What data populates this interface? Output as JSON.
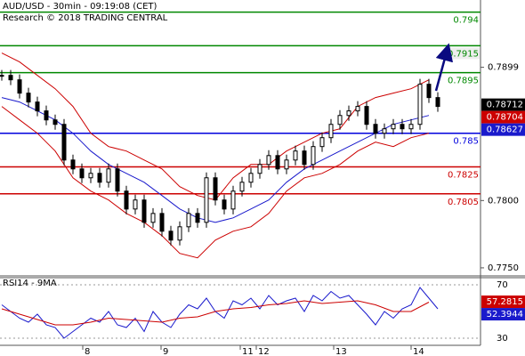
{
  "chart_data": [
    {
      "type": "candlestick",
      "title": "AUD/USD - 30min - 09:19:08 (CET)",
      "subtitle": "Research © 2018 TRADING CENTRAL",
      "x": [
        0,
        1,
        2,
        3,
        4,
        5,
        6,
        7,
        8,
        9,
        10,
        11,
        12,
        13,
        14,
        15,
        16,
        17,
        18,
        19,
        20,
        21,
        22,
        23,
        24,
        25,
        26,
        27,
        28,
        29,
        30,
        31,
        32,
        33,
        34,
        35,
        36,
        37,
        38,
        39,
        40,
        41,
        42,
        43,
        44,
        45,
        46,
        47,
        48,
        49
      ],
      "values": [
        0.7893,
        0.78897,
        0.78798,
        0.78732,
        0.78666,
        0.78599,
        0.78566,
        0.78301,
        0.78235,
        0.78169,
        0.78202,
        0.78136,
        0.78235,
        0.7807,
        0.77937,
        0.78004,
        0.77838,
        0.77904,
        0.77772,
        0.77706,
        0.77805,
        0.77904,
        0.77838,
        0.78169,
        0.78004,
        0.77937,
        0.7807,
        0.78136,
        0.78202,
        0.78268,
        0.78334,
        0.78235,
        0.78301,
        0.78368,
        0.78268,
        0.78401,
        0.78467,
        0.78566,
        0.78632,
        0.78666,
        0.78699,
        0.78566,
        0.785,
        0.78533,
        0.78566,
        0.78533,
        0.78566,
        0.78864,
        0.78765,
        0.78699
      ],
      "color": "#000000",
      "overlays": [
        {
          "color": "#1a1acc",
          "x": [
            0,
            2,
            4,
            6,
            8,
            10,
            12,
            14,
            16,
            18,
            20,
            22,
            24,
            26,
            28,
            30,
            32,
            34,
            36,
            38,
            40,
            42,
            44,
            46,
            48
          ],
          "values": [
            0.78765,
            0.78732,
            0.78666,
            0.78599,
            0.785,
            0.78368,
            0.78268,
            0.78202,
            0.78136,
            0.78037,
            0.77937,
            0.77871,
            0.77838,
            0.77871,
            0.77937,
            0.78004,
            0.78136,
            0.78235,
            0.78301,
            0.78368,
            0.78434,
            0.785,
            0.78566,
            0.78599,
            0.78632
          ]
        },
        {
          "color": "#cc0000",
          "x": [
            0,
            2,
            4,
            6,
            8,
            10,
            12,
            14,
            16,
            18,
            20,
            22,
            24,
            26,
            28,
            30,
            32,
            34,
            36,
            38,
            40,
            42,
            44,
            46,
            48
          ],
          "values": [
            0.79096,
            0.7903,
            0.7893,
            0.78831,
            0.78699,
            0.785,
            0.78401,
            0.78368,
            0.78301,
            0.78235,
            0.78103,
            0.78037,
            0.78004,
            0.78169,
            0.78268,
            0.78268,
            0.78368,
            0.78434,
            0.785,
            0.78533,
            0.78699,
            0.78765,
            0.78798,
            0.78831,
            0.78897
          ]
        },
        {
          "color": "#cc0000",
          "x": [
            0,
            2,
            4,
            6,
            8,
            10,
            12,
            14,
            16,
            18,
            20,
            22,
            24,
            26,
            28,
            30,
            32,
            34,
            36,
            38,
            40,
            42,
            44,
            46,
            48
          ],
          "values": [
            0.78699,
            0.78599,
            0.785,
            0.78368,
            0.78169,
            0.7807,
            0.78004,
            0.77904,
            0.77838,
            0.77739,
            0.77607,
            0.77574,
            0.77706,
            0.77772,
            0.77805,
            0.77904,
            0.7807,
            0.78169,
            0.78202,
            0.78268,
            0.78368,
            0.78434,
            0.78401,
            0.78467,
            0.785
          ]
        }
      ],
      "levels": [
        {
          "value": 0.794,
          "color": "#008800"
        },
        {
          "value": 0.7915,
          "color": "#008800"
        },
        {
          "value": 0.7895,
          "color": "#008800"
        },
        {
          "value": 0.785,
          "color": "#0000dd"
        },
        {
          "value": 0.7825,
          "color": "#cc0000"
        },
        {
          "value": 0.7805,
          "color": "#cc0000"
        }
      ],
      "price_tags": [
        {
          "value": 0.78712,
          "color": "#000000"
        },
        {
          "value": 0.78704,
          "color": "#cc0000"
        },
        {
          "value": 0.78627,
          "color": "#1a1acc"
        }
      ],
      "xlim": [
        -0.2,
        53.8
      ],
      "xticks": [
        {
          "value": 9.1,
          "label": "8"
        },
        {
          "value": 17.9,
          "label": "9"
        },
        {
          "value": 26.8,
          "label": "11"
        },
        {
          "value": 28.6,
          "label": "12"
        },
        {
          "value": 37.3,
          "label": "13"
        },
        {
          "value": 46,
          "label": "14"
        }
      ],
      "ylim": [
        0.7744,
        0.7949
      ],
      "yticks": [
        0.7899,
        {
          "value": 0.78,
          "label": "0.7800"
        },
        {
          "value": 0.775,
          "label": "0.7750"
        }
      ]
    },
    {
      "type": "line",
      "title": "RSI14 - 9MA",
      "x": [
        0,
        1,
        2,
        3,
        4,
        5,
        6,
        7,
        8,
        9,
        10,
        11,
        12,
        13,
        14,
        15,
        16,
        17,
        18,
        19,
        20,
        21,
        22,
        23,
        24,
        25,
        26,
        27,
        28,
        29,
        30,
        31,
        32,
        33,
        34,
        35,
        36,
        37,
        38,
        39,
        40,
        41,
        42,
        43,
        44,
        45,
        46,
        47,
        48,
        49
      ],
      "series": [
        {
          "color": "#1a1acc",
          "values": [
            55,
            50,
            45,
            42,
            48,
            40,
            38,
            30,
            35,
            40,
            45,
            42,
            50,
            40,
            38,
            45,
            35,
            50,
            42,
            38,
            48,
            55,
            52,
            60,
            50,
            45,
            58,
            55,
            60,
            52,
            62,
            55,
            58,
            60,
            50,
            62,
            58,
            65,
            60,
            62,
            55,
            48,
            40,
            50,
            45,
            52,
            55,
            68,
            60,
            52
          ]
        },
        {
          "color": "#cc0000",
          "x": [
            0,
            2,
            4,
            6,
            8,
            10,
            12,
            14,
            16,
            18,
            20,
            22,
            24,
            26,
            28,
            30,
            32,
            34,
            36,
            38,
            40,
            42,
            44,
            46,
            48
          ],
          "values": [
            52,
            48,
            44,
            40,
            40,
            42,
            45,
            44,
            43,
            42,
            45,
            46,
            50,
            52,
            53,
            55,
            56,
            58,
            56,
            57,
            58,
            55,
            50,
            50,
            57
          ]
        }
      ],
      "price_tags": [
        {
          "value": 57.2815,
          "color": "#cc0000"
        },
        {
          "value": 52.3944,
          "color": "#1a1acc"
        }
      ],
      "xlim": [
        -0.2,
        53.8
      ],
      "ylim": [
        24.7,
        75.3
      ],
      "yticks": [
        70,
        30
      ]
    }
  ]
}
